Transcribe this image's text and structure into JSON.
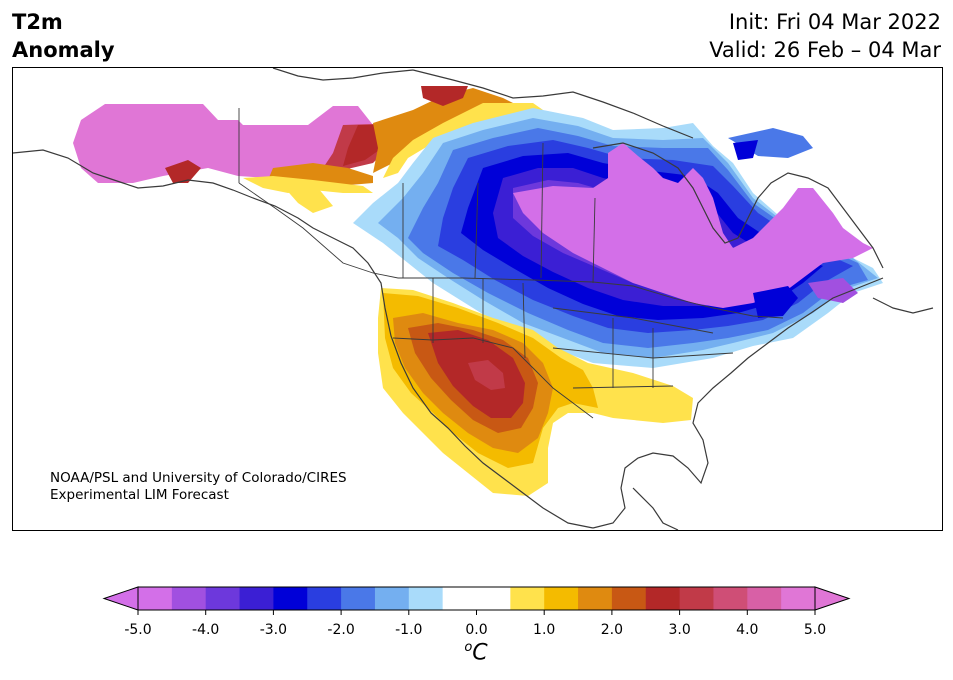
{
  "header": {
    "title_line1": "T2m",
    "title_line2": "Anomaly",
    "init": "Init: Fri 04 Mar 2022",
    "valid": "Valid: 26 Feb – 04 Mar"
  },
  "credit": {
    "line1": "NOAA/PSL and University of Colorado/CIRES",
    "line2": "Experimental LIM Forecast"
  },
  "colorbar": {
    "ticks": [
      "-5.0",
      "-4.0",
      "-3.0",
      "-2.0",
      "-1.0",
      "0.0",
      "1.0",
      "2.0",
      "3.0",
      "4.0",
      "5.0"
    ],
    "unit_sup": "o",
    "unit": "C",
    "colors": [
      "#d36fe8",
      "#a150e0",
      "#6d38dc",
      "#3b1fd4",
      "#0000d8",
      "#2a3ee0",
      "#4a78e8",
      "#74aff0",
      "#a9dbfa",
      "#ffffff",
      "#ffffff",
      "#ffe24c",
      "#f4bb00",
      "#df8a10",
      "#c85814",
      "#b32828",
      "#c13a48",
      "#cf4e76",
      "#d860a6",
      "#e076d6"
    ],
    "under_color": "#d36fe8",
    "over_color": "#e076d6"
  },
  "map": {
    "anomaly_regions": [
      {
        "name": "alaska-warm-core",
        "color": "#d870d8"
      },
      {
        "name": "canada-cold-core",
        "color": "#0000d8"
      },
      {
        "name": "quebec-cold-core",
        "color": "#d36fe8"
      },
      {
        "name": "southwest-warm-core",
        "color": "#b32828"
      }
    ]
  }
}
